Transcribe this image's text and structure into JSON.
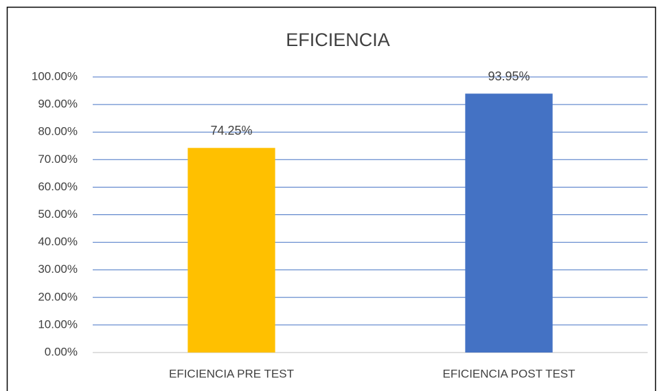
{
  "chart_data": {
    "type": "bar",
    "title": "EFICIENCIA",
    "categories": [
      "EFICIENCIA PRE TEST",
      "EFICIENCIA POST TEST"
    ],
    "values": [
      74.25,
      93.95
    ],
    "value_labels": [
      "74.25%",
      "93.95%"
    ],
    "colors": [
      "#ffc000",
      "#4472c4"
    ],
    "ylim": [
      0,
      100
    ],
    "yticks": [
      {
        "value": 0,
        "label": "0.00%"
      },
      {
        "value": 10,
        "label": "10.00%"
      },
      {
        "value": 20,
        "label": "20.00%"
      },
      {
        "value": 30,
        "label": "30.00%"
      },
      {
        "value": 40,
        "label": "40.00%"
      },
      {
        "value": 50,
        "label": "50.00%"
      },
      {
        "value": 60,
        "label": "60.00%"
      },
      {
        "value": 70,
        "label": "70.00%"
      },
      {
        "value": 80,
        "label": "80.00%"
      },
      {
        "value": 90,
        "label": "90.00%"
      },
      {
        "value": 100,
        "label": "100.00%"
      }
    ],
    "grid": true
  }
}
